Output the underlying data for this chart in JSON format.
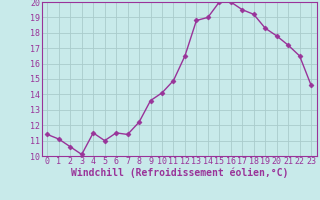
{
  "x": [
    0,
    1,
    2,
    3,
    4,
    5,
    6,
    7,
    8,
    9,
    10,
    11,
    12,
    13,
    14,
    15,
    16,
    17,
    18,
    19,
    20,
    21,
    22,
    23
  ],
  "y": [
    11.4,
    11.1,
    10.6,
    10.1,
    11.5,
    11.0,
    11.5,
    11.4,
    12.2,
    13.6,
    14.1,
    14.9,
    16.5,
    18.8,
    19.0,
    20.0,
    20.0,
    19.5,
    19.2,
    18.3,
    17.8,
    17.2,
    16.5,
    14.6
  ],
  "line_color": "#993399",
  "marker": "D",
  "marker_size": 2.5,
  "bg_color": "#c8eaea",
  "grid_color": "#aacccc",
  "xlabel": "Windchill (Refroidissement éolien,°C)",
  "xlabel_color": "#993399",
  "tick_color": "#993399",
  "ylim": [
    10,
    20
  ],
  "xlim": [
    -0.5,
    23.5
  ],
  "yticks": [
    10,
    11,
    12,
    13,
    14,
    15,
    16,
    17,
    18,
    19,
    20
  ],
  "xticks": [
    0,
    1,
    2,
    3,
    4,
    5,
    6,
    7,
    8,
    9,
    10,
    11,
    12,
    13,
    14,
    15,
    16,
    17,
    18,
    19,
    20,
    21,
    22,
    23
  ],
  "tick_fontsize": 6.0,
  "xlabel_fontsize": 7.0,
  "linewidth": 1.0
}
